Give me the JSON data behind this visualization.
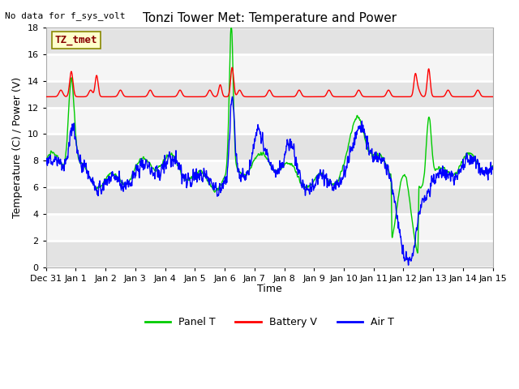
{
  "title": "Tonzi Tower Met: Temperature and Power",
  "top_left_text": "No data for f_sys_volt",
  "ylabel": "Temperature (C) / Power (V)",
  "xlabel": "Time",
  "ylim": [
    0,
    18
  ],
  "yticks": [
    0,
    2,
    4,
    6,
    8,
    10,
    12,
    14,
    16,
    18
  ],
  "n_days": 15,
  "xtick_labels": [
    "Dec 31",
    "Jan 1",
    "Jan 2",
    "Jan 3",
    "Jan 4",
    "Jan 5",
    "Jan 6",
    "Jan 7",
    "Jan 8",
    "Jan 9",
    "Jan 10",
    "Jan 11",
    "Jan 12",
    "Jan 13",
    "Jan 14",
    "Jan 15"
  ],
  "annotation_box": "TZ_tmet",
  "annotation_box_facecolor": "#ffffcc",
  "annotation_box_edgecolor": "#888800",
  "annotation_text_color": "#880000",
  "fig_bg_color": "#ffffff",
  "plot_bg_color": "#f5f5f5",
  "grid_color": "#ffffff",
  "panel_t_color": "#00cc00",
  "battery_v_color": "#ff0000",
  "air_t_color": "#0000ff",
  "panel_t_lw": 1.0,
  "battery_v_lw": 1.0,
  "air_t_lw": 1.0,
  "title_fontsize": 11,
  "axis_label_fontsize": 9,
  "tick_fontsize": 8
}
